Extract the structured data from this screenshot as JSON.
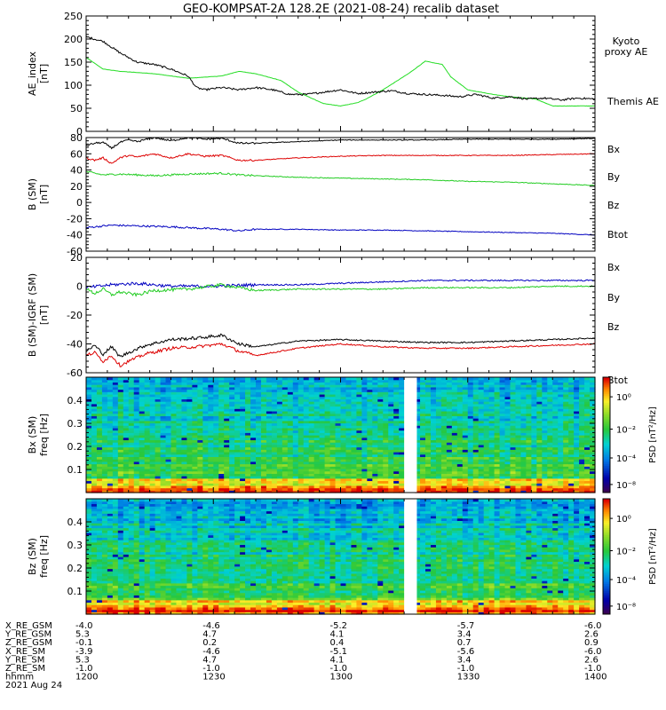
{
  "title": "GEO-KOMPSAT-2A 128.2E (2021-08-24) recalib dataset",
  "colors": {
    "black": "#000000",
    "red": "#dd0000",
    "green": "#22cc22",
    "blue": "#0000c0",
    "kyoto": "#22dd22"
  },
  "chart_data": [
    {
      "type": "line",
      "name": "ae",
      "ylabel_lines": [
        "AE_index",
        "[nT]"
      ],
      "ylim": [
        0,
        250
      ],
      "yticks": [
        0,
        50,
        100,
        150,
        200,
        250
      ],
      "xlim": [
        720,
        840
      ],
      "series": [
        {
          "name": "Kyoto proxy AE",
          "label_lines": [
            "Kyoto",
            "proxy AE"
          ],
          "color": "#22dd22",
          "x": [
            720,
            724,
            728,
            736,
            744,
            752,
            756,
            760,
            766,
            770,
            776,
            780,
            784,
            786,
            790,
            796,
            800,
            804,
            806,
            810,
            816,
            820,
            826,
            830,
            840
          ],
          "y": [
            160,
            135,
            130,
            125,
            115,
            120,
            130,
            125,
            110,
            85,
            60,
            55,
            62,
            70,
            90,
            125,
            152,
            145,
            118,
            90,
            80,
            75,
            70,
            55,
            55
          ]
        },
        {
          "name": "Themis AE",
          "label_lines": [
            "Themis AE"
          ],
          "color": "#000000",
          "x": [
            720,
            724,
            728,
            732,
            736,
            740,
            744,
            746,
            748,
            752,
            756,
            760,
            764,
            768,
            772,
            776,
            780,
            784,
            788,
            792,
            796,
            800,
            804,
            808,
            812,
            816,
            820,
            824,
            828,
            832,
            836,
            840
          ],
          "y": [
            205,
            195,
            170,
            150,
            145,
            135,
            120,
            95,
            90,
            95,
            90,
            95,
            90,
            80,
            80,
            85,
            90,
            82,
            85,
            88,
            82,
            80,
            78,
            75,
            80,
            72,
            75,
            70,
            72,
            68,
            72,
            70
          ]
        }
      ]
    },
    {
      "type": "line",
      "name": "bsm",
      "ylabel_lines": [
        "B (SM)",
        "[nT]"
      ],
      "ylim": [
        -60,
        80
      ],
      "yticks": [
        -60,
        -40,
        -20,
        0,
        20,
        40,
        60,
        80
      ],
      "xlim": [
        720,
        840
      ],
      "series": [
        {
          "name": "Bx",
          "color": "#0000c0",
          "x": [
            720,
            726,
            740,
            752,
            756,
            760,
            770,
            780,
            790,
            800,
            810,
            820,
            830,
            840
          ],
          "y": [
            -31,
            -28,
            -30,
            -33,
            -35,
            -33,
            -33,
            -34,
            -34,
            -35,
            -36,
            -37,
            -38,
            -40
          ]
        },
        {
          "name": "By",
          "color": "#22cc22",
          "x": [
            720,
            724,
            728,
            736,
            744,
            752,
            756,
            760,
            770,
            780,
            790,
            800,
            810,
            820,
            830,
            840
          ],
          "y": [
            38,
            34,
            35,
            33,
            35,
            36,
            34,
            33,
            31,
            30,
            29,
            28,
            26,
            25,
            23,
            21
          ]
        },
        {
          "name": "Bz",
          "color": "#dd0000",
          "x": [
            720,
            722,
            724,
            726,
            728,
            730,
            732,
            736,
            740,
            744,
            748,
            752,
            756,
            760,
            770,
            780,
            790,
            800,
            810,
            820,
            830,
            840
          ],
          "y": [
            55,
            52,
            55,
            48,
            55,
            58,
            56,
            60,
            55,
            60,
            57,
            58,
            52,
            52,
            55,
            57,
            58,
            58,
            58,
            58,
            59,
            60
          ]
        },
        {
          "name": "Btot",
          "color": "#000000",
          "x": [
            720,
            722,
            724,
            726,
            728,
            730,
            732,
            736,
            740,
            744,
            748,
            752,
            756,
            760,
            770,
            780,
            790,
            800,
            810,
            820,
            830,
            840
          ],
          "y": [
            70,
            73,
            74,
            67,
            74,
            77,
            75,
            80,
            76,
            80,
            78,
            79,
            73,
            73,
            75,
            77,
            77,
            77,
            78,
            78,
            78,
            79
          ]
        }
      ]
    },
    {
      "type": "line",
      "name": "bigrf",
      "ylabel_lines": [
        "B (SM)-IGRF (SM)",
        "[nT]"
      ],
      "ylim": [
        -60,
        20
      ],
      "yticks": [
        -60,
        -40,
        -20,
        0,
        20
      ],
      "xlim": [
        720,
        840
      ],
      "series": [
        {
          "name": "Bx",
          "color": "#0000c0",
          "x": [
            720,
            726,
            732,
            740,
            750,
            760,
            770,
            780,
            790,
            800,
            810,
            820,
            830,
            840
          ],
          "y": [
            -1,
            1,
            2,
            0,
            0,
            1,
            1,
            2,
            3,
            4,
            4,
            4,
            4,
            4
          ]
        },
        {
          "name": "By",
          "color": "#22cc22",
          "x": [
            720,
            722,
            724,
            726,
            728,
            732,
            736,
            744,
            752,
            756,
            760,
            770,
            780,
            790,
            800,
            810,
            820,
            830,
            840
          ],
          "y": [
            -2,
            -5,
            -2,
            -6,
            -4,
            -6,
            -3,
            -2,
            1,
            -1,
            -3,
            -2,
            -2,
            -2,
            -1,
            -1,
            -1,
            0,
            0
          ]
        },
        {
          "name": "Bz",
          "color": "#dd0000",
          "x": [
            720,
            722,
            724,
            726,
            728,
            730,
            734,
            740,
            746,
            752,
            756,
            760,
            770,
            780,
            790,
            800,
            810,
            820,
            830,
            840
          ],
          "y": [
            -48,
            -46,
            -52,
            -48,
            -55,
            -52,
            -47,
            -43,
            -42,
            -40,
            -45,
            -48,
            -43,
            -40,
            -42,
            -43,
            -43,
            -42,
            -41,
            -40
          ]
        },
        {
          "name": "Btot",
          "color": "#000000",
          "x": [
            720,
            722,
            724,
            726,
            728,
            730,
            734,
            740,
            746,
            752,
            756,
            760,
            770,
            780,
            790,
            800,
            810,
            820,
            830,
            840
          ],
          "y": [
            -45,
            -41,
            -47,
            -42,
            -49,
            -46,
            -41,
            -37,
            -36,
            -34,
            -40,
            -42,
            -38,
            -37,
            -38,
            -39,
            -39,
            -38,
            -37,
            -36
          ]
        }
      ]
    },
    {
      "type": "heatmap",
      "name": "bxpsd",
      "ylabel_lines": [
        "Bx (SM)",
        "freq [Hz]"
      ],
      "ylim": [
        0,
        0.5
      ],
      "yticks": [
        0.1,
        0.2,
        0.3,
        0.4
      ],
      "xlim": [
        720,
        840
      ],
      "gap": [
        795,
        798
      ],
      "colorbar": {
        "label": "PSD [nT²/Hz]",
        "ticks": [
          "10⁰",
          "10⁻²",
          "10⁻⁴",
          "10⁻⁸"
        ]
      }
    },
    {
      "type": "heatmap",
      "name": "bzpsd",
      "ylabel_lines": [
        "Bz (SM)",
        "freq [Hz]"
      ],
      "ylim": [
        0,
        0.5
      ],
      "yticks": [
        0.1,
        0.2,
        0.3,
        0.4
      ],
      "xlim": [
        720,
        840
      ],
      "gap": [
        795,
        798
      ],
      "colorbar": {
        "label": "PSD [nT²/Hz]",
        "ticks": [
          "10⁰",
          "10⁻²",
          "10⁻⁴",
          "10⁻⁸"
        ]
      }
    }
  ],
  "ephemeris": {
    "row_labels": [
      "X_RE_GSM",
      "Y_RE_GSM",
      "Z_RE_GSM",
      "X_RE_SM",
      "Y_RE_SM",
      "Z_RE_SM",
      "hhmm"
    ],
    "date": "2021 Aug 24",
    "columns": [
      {
        "t": 720,
        "values": [
          "-4.0",
          "5.3",
          "-0.1",
          "-3.9",
          "5.3",
          "-1.0",
          "1200"
        ]
      },
      {
        "t": 750,
        "values": [
          "-4.6",
          "4.7",
          "0.2",
          "-4.6",
          "4.7",
          "-1.0",
          "1230"
        ]
      },
      {
        "t": 780,
        "values": [
          "-5.2",
          "4.1",
          "0.4",
          "-5.1",
          "4.1",
          "-1.0",
          "1300"
        ]
      },
      {
        "t": 810,
        "values": [
          "-5.7",
          "3.4",
          "0.7",
          "-5.6",
          "3.4",
          "-1.0",
          "1330"
        ]
      },
      {
        "t": 840,
        "values": [
          "-6.0",
          "2.6",
          "0.9",
          "-6.0",
          "2.6",
          "-1.0",
          "1400"
        ]
      }
    ]
  }
}
